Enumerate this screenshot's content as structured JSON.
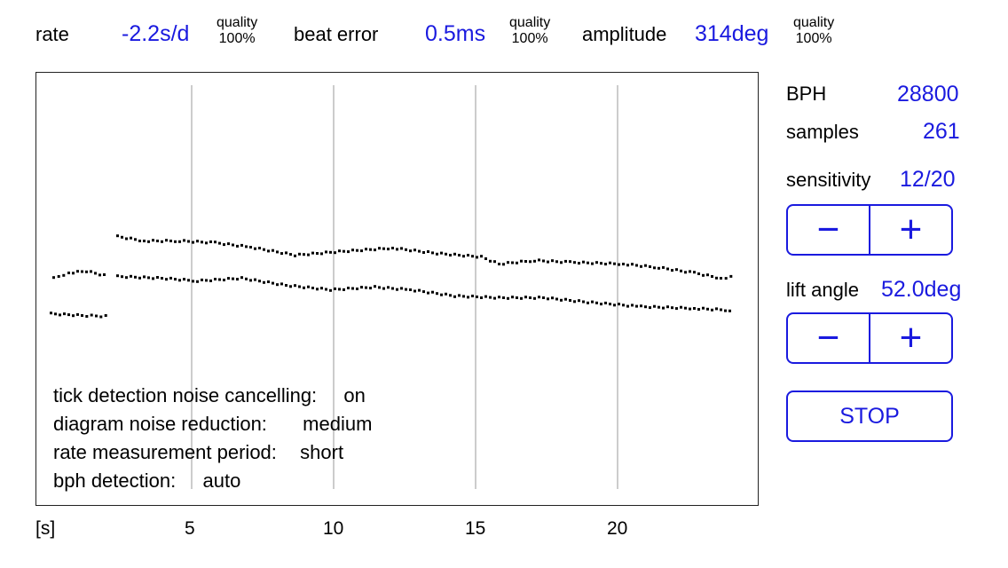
{
  "header": {
    "rate_label": "rate",
    "rate_value": "-2.2s/d",
    "rate_quality_label": "quality",
    "rate_quality_value": "100%",
    "beat_error_label": "beat error",
    "beat_error_value": "0.5ms",
    "beat_error_quality_label": "quality",
    "beat_error_quality_value": "100%",
    "amplitude_label": "amplitude",
    "amplitude_value": "314deg",
    "amplitude_quality_label": "quality",
    "amplitude_quality_value": "100%"
  },
  "side": {
    "bph_label": "BPH",
    "bph_value": "28800",
    "samples_label": "samples",
    "samples_value": "261",
    "sensitivity_label": "sensitivity",
    "sensitivity_value": "12/20",
    "lift_angle_label": "lift angle",
    "lift_angle_value": "52.0deg",
    "minus_symbol": "−",
    "plus_symbol": "+",
    "stop_label": "STOP"
  },
  "settings": [
    {
      "label": "tick detection noise cancelling:",
      "value": "on"
    },
    {
      "label": "diagram noise reduction:",
      "value": "medium"
    },
    {
      "label": "rate measurement period:",
      "value": "short"
    },
    {
      "label": "bph detection:",
      "value": "auto"
    }
  ],
  "axis": {
    "unit_label": "[s]",
    "ticks": [
      "5",
      "10",
      "15",
      "20"
    ]
  },
  "colors": {
    "accent": "#1a1adf",
    "grid": "#cccccc",
    "dots": "#000000"
  }
}
